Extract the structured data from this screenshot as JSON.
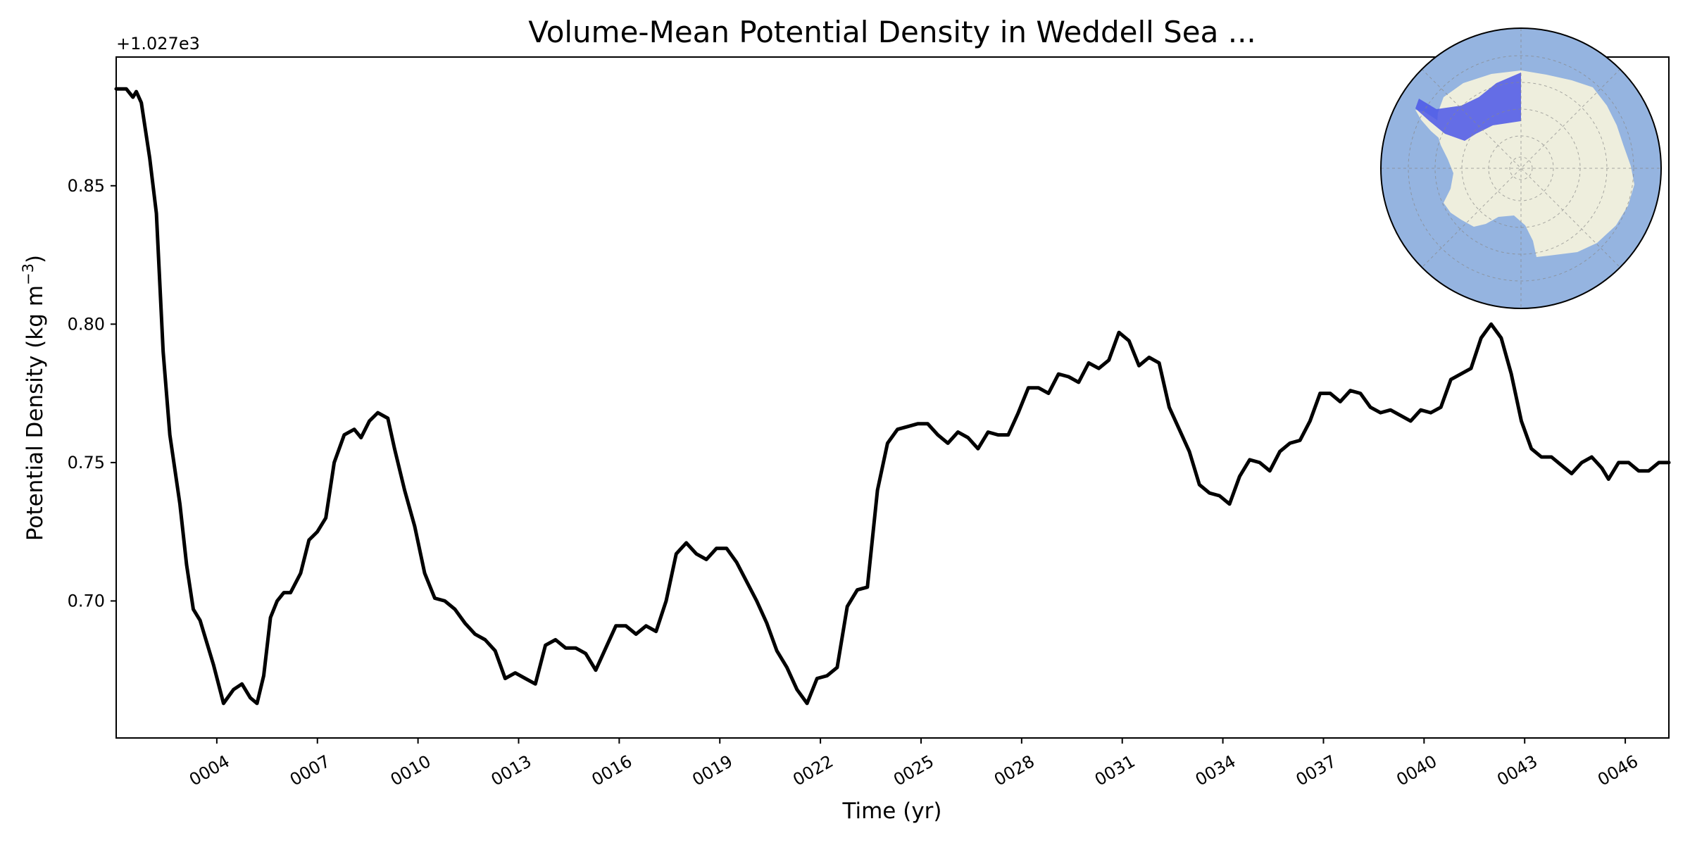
{
  "chart_data": {
    "type": "line",
    "title": "Volume-Mean Potential Density in Weddell Sea ...",
    "xlabel": "Time (yr)",
    "ylabel_main": "Potential Density (kg m",
    "ylabel_sup": "−3",
    "ylabel_close": ")",
    "offset_label": "+1.027e3",
    "xlim": [
      1,
      47.3
    ],
    "ylim": [
      0.6505,
      0.8965
    ],
    "xticks": [
      {
        "value": 4,
        "label": "0004"
      },
      {
        "value": 7,
        "label": "0007"
      },
      {
        "value": 10,
        "label": "0010"
      },
      {
        "value": 13,
        "label": "0013"
      },
      {
        "value": 16,
        "label": "0016"
      },
      {
        "value": 19,
        "label": "0019"
      },
      {
        "value": 22,
        "label": "0022"
      },
      {
        "value": 25,
        "label": "0025"
      },
      {
        "value": 28,
        "label": "0028"
      },
      {
        "value": 31,
        "label": "0031"
      },
      {
        "value": 34,
        "label": "0034"
      },
      {
        "value": 37,
        "label": "0037"
      },
      {
        "value": 40,
        "label": "0040"
      },
      {
        "value": 43,
        "label": "0043"
      },
      {
        "value": 46,
        "label": "0046"
      }
    ],
    "yticks": [
      {
        "value": 0.7,
        "label": "0.70"
      },
      {
        "value": 0.75,
        "label": "0.75"
      },
      {
        "value": 0.8,
        "label": "0.80"
      },
      {
        "value": 0.85,
        "label": "0.85"
      }
    ],
    "grid": false,
    "line_color": "#000000",
    "series": [
      {
        "points": [
          [
            1.0,
            0.885
          ],
          [
            1.3,
            0.885
          ],
          [
            1.5,
            0.882
          ],
          [
            1.6,
            0.884
          ],
          [
            1.75,
            0.88
          ],
          [
            2.0,
            0.86
          ],
          [
            2.2,
            0.84
          ],
          [
            2.4,
            0.79
          ],
          [
            2.6,
            0.76
          ],
          [
            2.9,
            0.735
          ],
          [
            3.1,
            0.713
          ],
          [
            3.3,
            0.697
          ],
          [
            3.5,
            0.693
          ],
          [
            3.7,
            0.685
          ],
          [
            3.9,
            0.677
          ],
          [
            4.2,
            0.663
          ],
          [
            4.5,
            0.668
          ],
          [
            4.75,
            0.67
          ],
          [
            5.0,
            0.665
          ],
          [
            5.2,
            0.663
          ],
          [
            5.4,
            0.673
          ],
          [
            5.6,
            0.694
          ],
          [
            5.8,
            0.7
          ],
          [
            6.0,
            0.703
          ],
          [
            6.2,
            0.703
          ],
          [
            6.5,
            0.71
          ],
          [
            6.75,
            0.722
          ],
          [
            7.0,
            0.725
          ],
          [
            7.25,
            0.73
          ],
          [
            7.5,
            0.75
          ],
          [
            7.8,
            0.76
          ],
          [
            8.1,
            0.762
          ],
          [
            8.3,
            0.759
          ],
          [
            8.55,
            0.765
          ],
          [
            8.8,
            0.768
          ],
          [
            9.1,
            0.766
          ],
          [
            9.3,
            0.755
          ],
          [
            9.6,
            0.74
          ],
          [
            9.9,
            0.727
          ],
          [
            10.2,
            0.71
          ],
          [
            10.5,
            0.701
          ],
          [
            10.8,
            0.7
          ],
          [
            11.1,
            0.697
          ],
          [
            11.4,
            0.692
          ],
          [
            11.7,
            0.688
          ],
          [
            12.0,
            0.686
          ],
          [
            12.3,
            0.682
          ],
          [
            12.6,
            0.672
          ],
          [
            12.9,
            0.674
          ],
          [
            13.2,
            0.672
          ],
          [
            13.5,
            0.67
          ],
          [
            13.8,
            0.684
          ],
          [
            14.1,
            0.686
          ],
          [
            14.4,
            0.683
          ],
          [
            14.7,
            0.683
          ],
          [
            15.0,
            0.681
          ],
          [
            15.3,
            0.675
          ],
          [
            15.6,
            0.683
          ],
          [
            15.9,
            0.691
          ],
          [
            16.2,
            0.691
          ],
          [
            16.5,
            0.688
          ],
          [
            16.8,
            0.691
          ],
          [
            17.1,
            0.689
          ],
          [
            17.4,
            0.7
          ],
          [
            17.7,
            0.717
          ],
          [
            18.0,
            0.721
          ],
          [
            18.3,
            0.717
          ],
          [
            18.6,
            0.715
          ],
          [
            18.9,
            0.719
          ],
          [
            19.2,
            0.719
          ],
          [
            19.5,
            0.714
          ],
          [
            19.8,
            0.707
          ],
          [
            20.1,
            0.7
          ],
          [
            20.4,
            0.692
          ],
          [
            20.7,
            0.682
          ],
          [
            21.0,
            0.676
          ],
          [
            21.3,
            0.668
          ],
          [
            21.6,
            0.663
          ],
          [
            21.9,
            0.672
          ],
          [
            22.2,
            0.673
          ],
          [
            22.5,
            0.676
          ],
          [
            22.8,
            0.698
          ],
          [
            23.1,
            0.704
          ],
          [
            23.4,
            0.705
          ],
          [
            23.7,
            0.74
          ],
          [
            24.0,
            0.757
          ],
          [
            24.3,
            0.762
          ],
          [
            24.6,
            0.763
          ],
          [
            24.9,
            0.764
          ],
          [
            25.2,
            0.764
          ],
          [
            25.5,
            0.76
          ],
          [
            25.8,
            0.757
          ],
          [
            26.1,
            0.761
          ],
          [
            26.4,
            0.759
          ],
          [
            26.7,
            0.755
          ],
          [
            27.0,
            0.761
          ],
          [
            27.3,
            0.76
          ],
          [
            27.6,
            0.76
          ],
          [
            27.9,
            0.768
          ],
          [
            28.2,
            0.777
          ],
          [
            28.5,
            0.777
          ],
          [
            28.8,
            0.775
          ],
          [
            29.1,
            0.782
          ],
          [
            29.4,
            0.781
          ],
          [
            29.7,
            0.779
          ],
          [
            30.0,
            0.786
          ],
          [
            30.3,
            0.784
          ],
          [
            30.6,
            0.787
          ],
          [
            30.9,
            0.797
          ],
          [
            31.2,
            0.794
          ],
          [
            31.5,
            0.785
          ],
          [
            31.8,
            0.788
          ],
          [
            32.1,
            0.786
          ],
          [
            32.4,
            0.77
          ],
          [
            32.7,
            0.762
          ],
          [
            33.0,
            0.754
          ],
          [
            33.3,
            0.742
          ],
          [
            33.6,
            0.739
          ],
          [
            33.9,
            0.738
          ],
          [
            34.2,
            0.735
          ],
          [
            34.5,
            0.745
          ],
          [
            34.8,
            0.751
          ],
          [
            35.1,
            0.75
          ],
          [
            35.4,
            0.747
          ],
          [
            35.7,
            0.754
          ],
          [
            36.0,
            0.757
          ],
          [
            36.3,
            0.758
          ],
          [
            36.6,
            0.765
          ],
          [
            36.9,
            0.775
          ],
          [
            37.2,
            0.775
          ],
          [
            37.5,
            0.772
          ],
          [
            37.8,
            0.776
          ],
          [
            38.1,
            0.775
          ],
          [
            38.4,
            0.77
          ],
          [
            38.7,
            0.768
          ],
          [
            39.0,
            0.769
          ],
          [
            39.3,
            0.767
          ],
          [
            39.6,
            0.765
          ],
          [
            39.9,
            0.769
          ],
          [
            40.2,
            0.768
          ],
          [
            40.5,
            0.77
          ],
          [
            40.8,
            0.78
          ],
          [
            41.1,
            0.782
          ],
          [
            41.4,
            0.784
          ],
          [
            41.7,
            0.795
          ],
          [
            42.0,
            0.8
          ],
          [
            42.3,
            0.795
          ],
          [
            42.6,
            0.782
          ],
          [
            42.9,
            0.765
          ],
          [
            43.2,
            0.755
          ],
          [
            43.5,
            0.752
          ],
          [
            43.8,
            0.752
          ],
          [
            44.1,
            0.749
          ],
          [
            44.4,
            0.746
          ],
          [
            44.7,
            0.75
          ],
          [
            45.0,
            0.752
          ],
          [
            45.3,
            0.748
          ],
          [
            45.5,
            0.744
          ],
          [
            45.8,
            0.75
          ],
          [
            46.1,
            0.75
          ],
          [
            46.4,
            0.747
          ],
          [
            46.7,
            0.747
          ],
          [
            47.0,
            0.75
          ],
          [
            47.3,
            0.75
          ]
        ]
      }
    ]
  },
  "inset_map": {
    "ocean_color": "#95b4e0",
    "land_color": "#eeeedd",
    "region_color": "#4b56e8"
  }
}
